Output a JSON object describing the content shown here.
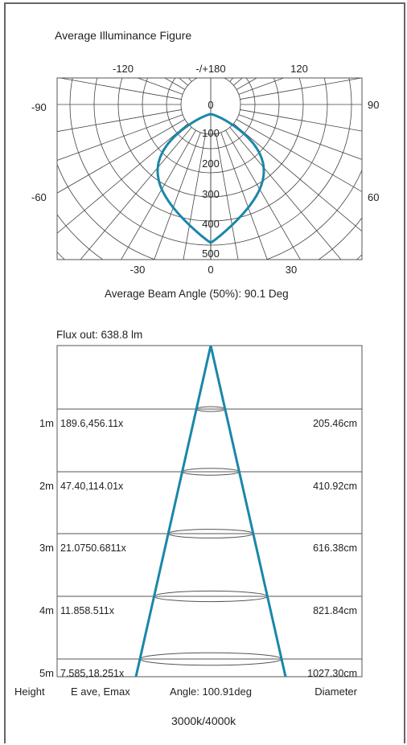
{
  "polar": {
    "title": "Average Illuminance Figure",
    "angle_labels": {
      "top_left": "-120",
      "top_center": "-/+180",
      "top_right": "120",
      "left_upper": "-90",
      "right_upper": "90",
      "left_lower": "-60",
      "right_lower": "60",
      "bottom_left": "-30",
      "bottom_center": "0",
      "bottom_right": "30"
    },
    "radial_labels": [
      "0",
      "100",
      "200",
      "300",
      "400",
      "500"
    ],
    "beam_angle_text": "Average Beam Angle (50%): 90.1 Deg",
    "curve_color": "#1a87a8"
  },
  "cone": {
    "flux_text": "Flux out: 638.8 lm",
    "rows": [
      {
        "height": "1m",
        "illuminance": "189.6,456.11x",
        "diameter": "205.46cm"
      },
      {
        "height": "2m",
        "illuminance": "47.40,114.01x",
        "diameter": "410.92cm"
      },
      {
        "height": "3m",
        "illuminance": "21.0750.6811x",
        "diameter": "616.38cm"
      },
      {
        "height": "4m",
        "illuminance": "11.858.511x",
        "diameter": "821.84cm"
      },
      {
        "height": "5m",
        "illuminance": "7.585,18.251x",
        "diameter": "1027.30cm"
      }
    ],
    "footer": {
      "height_label": "Height",
      "illuminance_label": "E ave, Emax",
      "angle_label": "Angle: 100.91deg",
      "diameter_label": "Diameter"
    },
    "line_color": "#1a87a8"
  },
  "color_temperature": "3000k/4000k"
}
